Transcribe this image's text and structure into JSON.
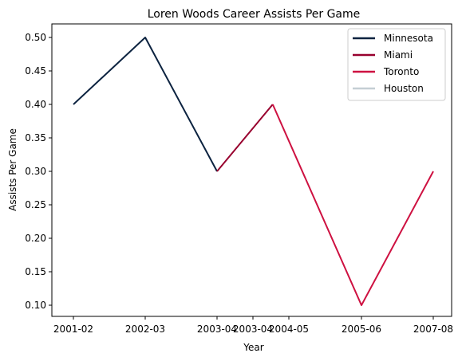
{
  "chart_data": {
    "type": "line",
    "title": "Loren Woods Career Assists Per Game",
    "xlabel": "Year",
    "ylabel": "Assists Per Game",
    "x_tick_labels": [
      "2001-02",
      "2002-03",
      "2003-04",
      "2003-04",
      "2004-05",
      "2005-06",
      "2007-08"
    ],
    "ylim": [
      0.08,
      0.52
    ],
    "y_ticks": [
      0.1,
      0.15,
      0.2,
      0.25,
      0.3,
      0.35,
      0.4,
      0.45,
      0.5
    ],
    "y_tick_labels": [
      "0.10",
      "0.15",
      "0.20",
      "0.25",
      "0.30",
      "0.35",
      "0.40",
      "0.45",
      "0.50"
    ],
    "grid": false,
    "legend_position": "top-right",
    "series": [
      {
        "name": "Minnesota",
        "color": "#0c2340",
        "points": [
          {
            "x": 0.0,
            "y": 0.4
          },
          {
            "x": 1.0,
            "y": 0.5
          },
          {
            "x": 2.0,
            "y": 0.3
          }
        ]
      },
      {
        "name": "Miami",
        "color": "#98002e",
        "points": [
          {
            "x": 2.0,
            "y": 0.3
          },
          {
            "x": 3.0,
            "y": 0.4
          }
        ]
      },
      {
        "name": "Toronto",
        "color": "#ce1141",
        "points": [
          {
            "x": 3.0,
            "y": 0.4
          },
          {
            "x": 4.0,
            "y": 0.1
          },
          {
            "x": 5.0,
            "y": 0.3
          }
        ]
      },
      {
        "name": "Houston",
        "color": "#c4ced4",
        "points": []
      }
    ]
  }
}
